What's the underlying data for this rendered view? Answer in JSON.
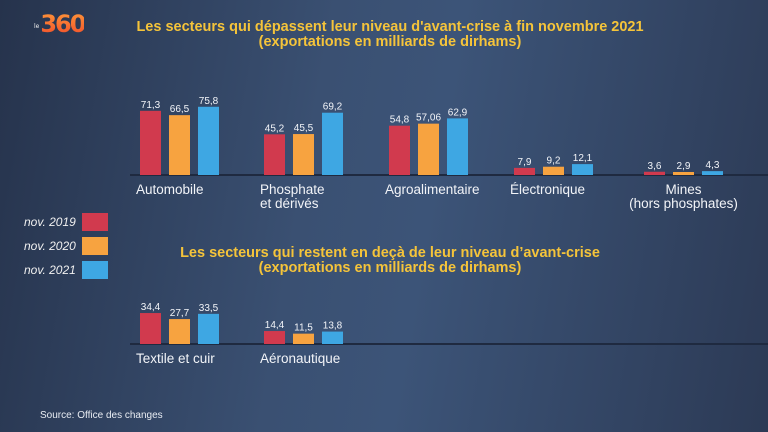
{
  "logo": {
    "prefix": "le",
    "text": "360"
  },
  "colors": {
    "nov2019": "#d13a4e",
    "nov2020": "#f7a340",
    "nov2021": "#3ea7e3",
    "title": "#f5c43a"
  },
  "legend": [
    {
      "label": "nov. 2019",
      "color": "#d13a4e"
    },
    {
      "label": "nov. 2020",
      "color": "#f7a340"
    },
    {
      "label": "nov. 2021",
      "color": "#3ea7e3"
    }
  ],
  "source": "Source: Office des changes",
  "chart_data": [
    {
      "type": "bar",
      "title": "Les secteurs qui dépassent leur niveau d'avant-crise à fin novembre 2021",
      "subtitle": "(exportations en milliards de dirhams)",
      "categories": [
        "Automobile",
        "Phosphate et dérivés",
        "Agroalimentaire",
        "Électronique",
        "Mines (hors phosphates)"
      ],
      "category_lines": [
        [
          "Automobile"
        ],
        [
          "Phosphate",
          "et dérivés"
        ],
        [
          "Agroalimentaire"
        ],
        [
          "Électronique"
        ],
        [
          "Mines",
          "(hors phosphates)"
        ]
      ],
      "series": [
        {
          "name": "nov. 2019",
          "values": [
            71.3,
            45.2,
            54.8,
            7.9,
            3.6
          ],
          "labels": [
            "71,3",
            "45,2",
            "54,8",
            "7,9",
            "3,6"
          ]
        },
        {
          "name": "nov. 2020",
          "values": [
            66.5,
            45.5,
            57.06,
            9.2,
            2.9
          ],
          "labels": [
            "66,5",
            "45,5",
            "57,06",
            "9,2",
            "2,9"
          ]
        },
        {
          "name": "nov. 2021",
          "values": [
            75.8,
            69.2,
            62.9,
            12.1,
            4.3
          ],
          "labels": [
            "75,8",
            "69,2",
            "62,9",
            "12,1",
            "4,3"
          ]
        }
      ],
      "xlabel": "",
      "ylabel": "",
      "grid": false,
      "legend_position": "left"
    },
    {
      "type": "bar",
      "title": "Les secteurs qui restent en deçà de leur niveau d’avant-crise",
      "subtitle": "(exportations en milliards de dirhams)",
      "categories": [
        "Textile et cuir",
        "Aéronautique"
      ],
      "category_lines": [
        [
          "Textile et cuir"
        ],
        [
          "Aéronautique"
        ]
      ],
      "series": [
        {
          "name": "nov. 2019",
          "values": [
            34.4,
            14.4
          ],
          "labels": [
            "34,4",
            "14,4"
          ]
        },
        {
          "name": "nov. 2020",
          "values": [
            27.7,
            11.5
          ],
          "labels": [
            "27,7",
            "11,5"
          ]
        },
        {
          "name": "nov. 2021",
          "values": [
            33.5,
            13.8
          ],
          "labels": [
            "33,5",
            "13,8"
          ]
        }
      ],
      "xlabel": "",
      "ylabel": "",
      "grid": false,
      "legend_position": "left"
    }
  ]
}
